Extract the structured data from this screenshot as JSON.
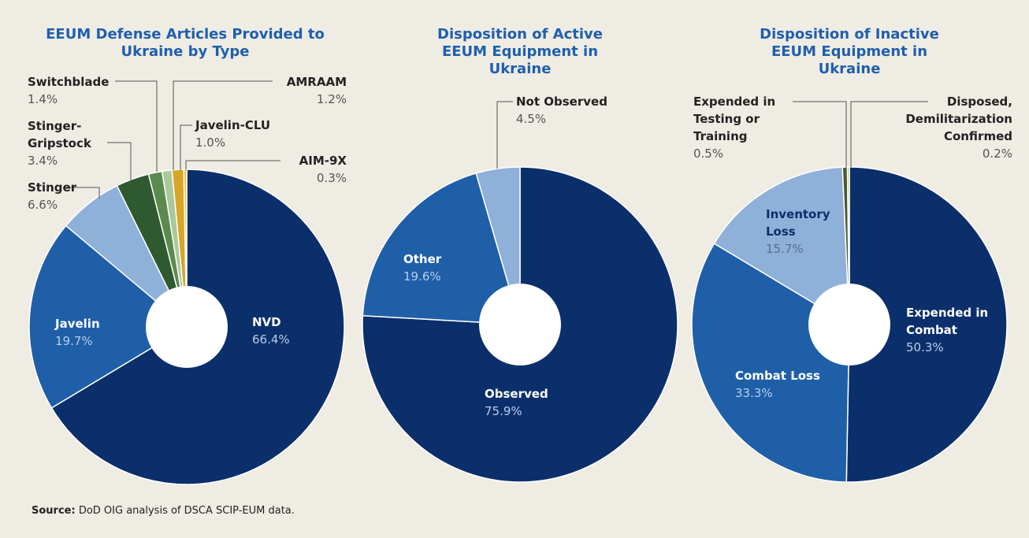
{
  "chart_data": [
    {
      "type": "pie",
      "title": "EEUM Defense Articles Provided to Ukraine by Type",
      "categories": [
        "NVD",
        "Javelin",
        "Stinger",
        "Stinger-Gripstock",
        "Switchblade",
        "Javelin-CLU",
        "AMRAAM",
        "AIM-9X"
      ],
      "values": [
        66.4,
        19.7,
        6.6,
        3.4,
        1.4,
        1.0,
        1.2,
        0.3
      ],
      "value_labels": [
        "66.4%",
        "19.7%",
        "6.6%",
        "3.4%",
        "1.4%",
        "1.0%",
        "1.2%",
        "0.3%"
      ],
      "colors": [
        "#0b2f6b",
        "#1e5fa8",
        "#8fb0d8",
        "#2f5a2f",
        "#5b8a4f",
        "#a9c99a",
        "#d6a52a",
        "#f2c230"
      ]
    },
    {
      "type": "pie",
      "title": "Disposition of Active EEUM Equipment in Ukraine",
      "categories": [
        "Observed",
        "Other",
        "Not Observed"
      ],
      "values": [
        75.9,
        19.6,
        4.5
      ],
      "value_labels": [
        "75.9%",
        "19.6%",
        "4.5%"
      ],
      "colors": [
        "#0b2f6b",
        "#1e5fa8",
        "#8fb0d8"
      ]
    },
    {
      "type": "pie",
      "title": "Disposition of Inactive EEUM Equipment in Ukraine",
      "categories": [
        "Expended in Combat",
        "Combat Loss",
        "Inventory Loss",
        "Expended in Testing or Training",
        "Disposed, Demilitarization Confirmed"
      ],
      "values": [
        50.3,
        33.3,
        15.7,
        0.5,
        0.2
      ],
      "value_labels": [
        "50.3%",
        "33.3%",
        "15.7%",
        "0.5%",
        "0.2%"
      ],
      "colors": [
        "#0b2f6b",
        "#1e5fa8",
        "#8fb0d8",
        "#4a5a2a",
        "#a8c080"
      ]
    }
  ],
  "source": {
    "label": "Source:",
    "text": "DoD OIG analysis of DSCA SCIP-EUM data."
  }
}
